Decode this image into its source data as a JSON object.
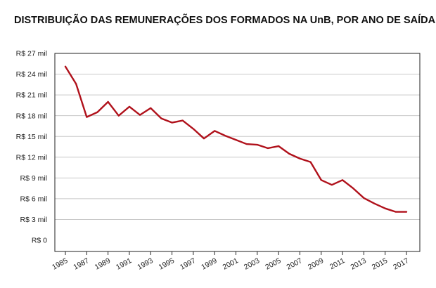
{
  "chart_data": {
    "type": "line",
    "title": "DISTRIBUIÇÃO DAS REMUNERAÇÕES DOS FORMADOS NA UnB, POR ANO DE SAÍDA",
    "xlabel": "",
    "ylabel": "",
    "ylim": [
      0,
      27000
    ],
    "xlim": [
      1985,
      2017
    ],
    "y_ticks": [
      0,
      3000,
      6000,
      9000,
      12000,
      15000,
      18000,
      21000,
      24000,
      27000
    ],
    "y_tick_labels": [
      "R$ 0",
      "R$ 3 mil",
      "R$ 6 mil",
      "R$ 9 mil",
      "R$ 12 mil",
      "R$ 15 mil",
      "R$ 18 mil",
      "R$ 21 mil",
      "R$ 24 mil",
      "R$ 27 mil"
    ],
    "x_ticks": [
      1985,
      1987,
      1989,
      1991,
      1993,
      1995,
      1997,
      1999,
      2001,
      2003,
      2005,
      2007,
      2009,
      2011,
      2013,
      2015,
      2017
    ],
    "x_tick_labels": [
      "1985",
      "1987",
      "1989",
      "1991",
      "1993",
      "1995",
      "1997",
      "1999",
      "2001",
      "2003",
      "2005",
      "2007",
      "2009",
      "2011",
      "2013",
      "2015",
      "2017"
    ],
    "grid": true,
    "line_color": "#b0111b",
    "series": [
      {
        "x": [
          1985,
          1986,
          1987,
          1988,
          1989,
          1990,
          1991,
          1992,
          1993,
          1994,
          1995,
          1996,
          1997,
          1998,
          1999,
          2000,
          2001,
          2002,
          2003,
          2004,
          2005,
          2006,
          2007,
          2008,
          2009,
          2010,
          2011,
          2012,
          2013,
          2014,
          2015,
          2016,
          2017
        ],
        "values": [
          25100,
          22600,
          17800,
          18500,
          20000,
          18000,
          19300,
          18100,
          19100,
          17600,
          17000,
          17300,
          16100,
          14700,
          15800,
          15100,
          14500,
          13900,
          13800,
          13300,
          13600,
          12500,
          11800,
          11300,
          8700,
          8000,
          8700,
          7500,
          6100,
          5300,
          4600,
          4100,
          4100
        ]
      }
    ]
  }
}
